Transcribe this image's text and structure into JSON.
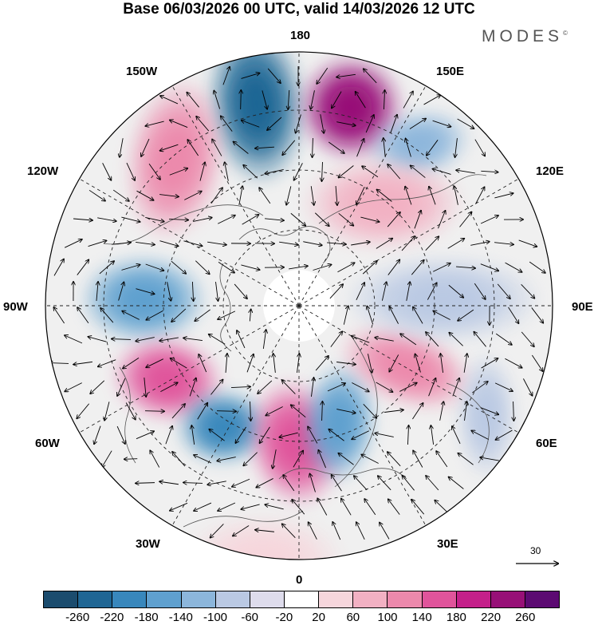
{
  "title": "Base 06/03/2026 00 UTC, valid 14/03/2026 12 UTC",
  "brand": "MODES",
  "brand_mark": "©",
  "longitude_labels": {
    "top": "180",
    "top_left": "150W",
    "top_right": "150E",
    "upper_left": "120W",
    "upper_right": "120E",
    "left": "90W",
    "right": "90E",
    "lower_left": "60W",
    "lower_right": "60E",
    "bottom_left": "30W",
    "bottom_right": "30E",
    "bottom": "0"
  },
  "reference_vector": {
    "value": "30"
  },
  "colorbar": {
    "labels": [
      "-260",
      "-220",
      "-180",
      "-140",
      "-100",
      "-60",
      "-20",
      "20",
      "60",
      "100",
      "140",
      "180",
      "220",
      "260"
    ],
    "colors": [
      "#1b4c6e",
      "#1f6694",
      "#3887bc",
      "#5fa0cf",
      "#8cb6db",
      "#bac9e3",
      "#dedcec",
      "#ffffff",
      "#f6d6dc",
      "#f2b1c3",
      "#ec89ac",
      "#e0549b",
      "#c4208a",
      "#971077",
      "#5c0a72"
    ]
  },
  "anomaly_centers": [
    {
      "color": "#1f6694"
    },
    {
      "color": "#971077"
    },
    {
      "color": "#8cb6db"
    },
    {
      "color": "#ec89ac"
    },
    {
      "color": "#5fa0cf"
    },
    {
      "color": "#e0549b"
    },
    {
      "color": "#3887bc"
    },
    {
      "color": "#e0549b"
    },
    {
      "color": "#5fa0cf"
    },
    {
      "color": "#ec89ac"
    },
    {
      "color": "#bac9e3"
    },
    {
      "color": "#f2b1c3"
    },
    {
      "color": "#bac9e3"
    },
    {
      "color": "#f6d6dc"
    }
  ]
}
